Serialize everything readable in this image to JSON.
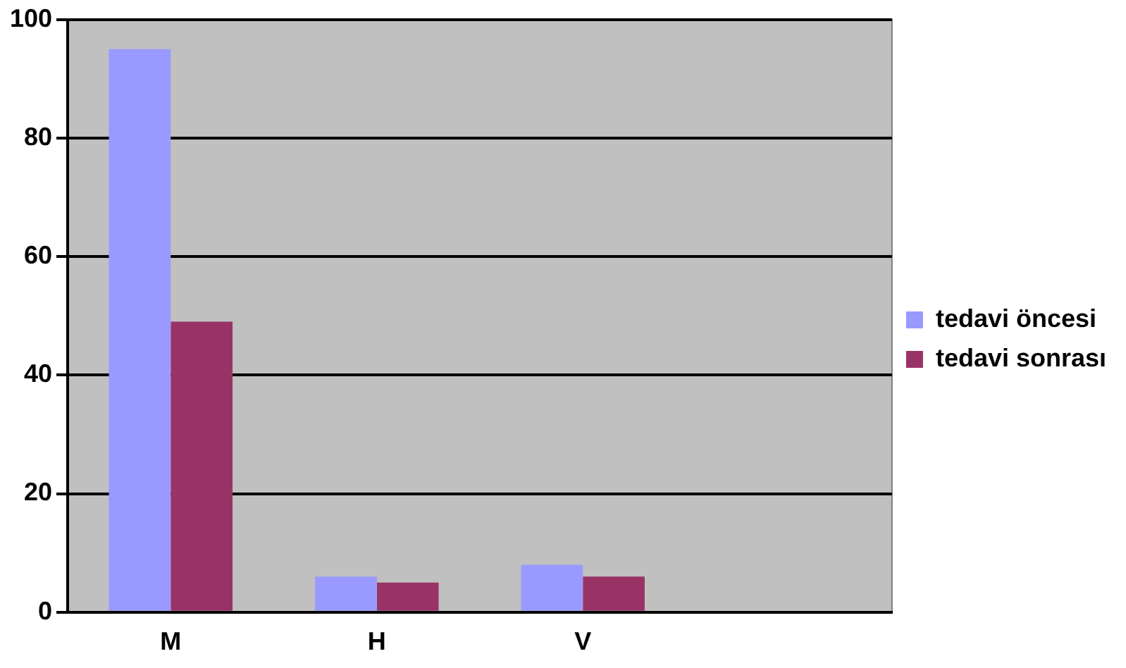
{
  "chart_data": {
    "type": "bar",
    "categories": [
      "M",
      "H",
      "V",
      null
    ],
    "series": [
      {
        "name": "tedavi öncesi",
        "color": "#9999ff",
        "values": [
          95,
          6,
          8,
          null
        ]
      },
      {
        "name": "tedavi sonrası",
        "color": "#993366",
        "values": [
          49,
          5,
          6,
          null
        ]
      }
    ],
    "ylim": [
      0,
      100
    ],
    "yticks": [
      0,
      20,
      40,
      60,
      80,
      100
    ],
    "grid": "y",
    "legend": "right"
  }
}
